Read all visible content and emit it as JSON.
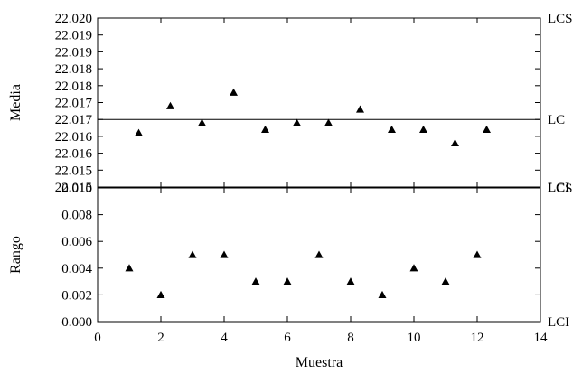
{
  "chart_data": [
    {
      "type": "scatter",
      "title": "",
      "xlabel": "",
      "ylabel": "Media",
      "marker": "triangle",
      "x": [
        1.3,
        2.3,
        3.3,
        4.3,
        5.3,
        6.3,
        7.3,
        8.3,
        9.3,
        10.3,
        11.3,
        12.3
      ],
      "y": [
        22.0166,
        22.0174,
        22.0169,
        22.0178,
        22.0167,
        22.0169,
        22.0169,
        22.0173,
        22.0167,
        22.0167,
        22.0163,
        22.0167
      ],
      "xlim": [
        0,
        14
      ],
      "ylim": [
        22.015,
        22.02
      ],
      "yticks": [
        22.015,
        22.0155,
        22.016,
        22.0165,
        22.017,
        22.0175,
        22.018,
        22.0185,
        22.019,
        22.0195,
        22.02
      ],
      "ytick_labels": [
        "22.015",
        "22.015",
        "22.016",
        "22.016",
        "22.017",
        "22.017",
        "22.018",
        "22.018",
        "22.019",
        "22.019",
        "22.020"
      ],
      "limits": [
        {
          "label": "LCS",
          "y": 22.02,
          "line": false
        },
        {
          "label": "LC",
          "y": 22.017,
          "line": true
        },
        {
          "label": "LCI",
          "y": 22.015,
          "line": false
        }
      ]
    },
    {
      "type": "scatter",
      "title": "",
      "xlabel": "Muestra",
      "ylabel": "Rango",
      "marker": "triangle",
      "x": [
        1,
        2,
        3,
        4,
        5,
        6,
        7,
        8,
        9,
        10,
        11,
        12
      ],
      "y": [
        0.004,
        0.002,
        0.005,
        0.005,
        0.003,
        0.003,
        0.005,
        0.003,
        0.002,
        0.004,
        0.003,
        0.005
      ],
      "xlim": [
        0,
        14
      ],
      "xticks": [
        0,
        2,
        4,
        6,
        8,
        10,
        12,
        14
      ],
      "xtick_labels": [
        "0",
        "2",
        "4",
        "6",
        "8",
        "10",
        "12",
        "14"
      ],
      "ylim": [
        0,
        0.01
      ],
      "yticks": [
        0,
        0.002,
        0.004,
        0.006,
        0.008,
        0.01
      ],
      "ytick_labels": [
        "0.000",
        "0.002",
        "0.004",
        "0.006",
        "0.008",
        "0.010"
      ],
      "limits": [
        {
          "label": "LCS",
          "y": 0.01,
          "line": false
        },
        {
          "label": "LCI",
          "y": 0.0,
          "line": false
        }
      ]
    }
  ]
}
